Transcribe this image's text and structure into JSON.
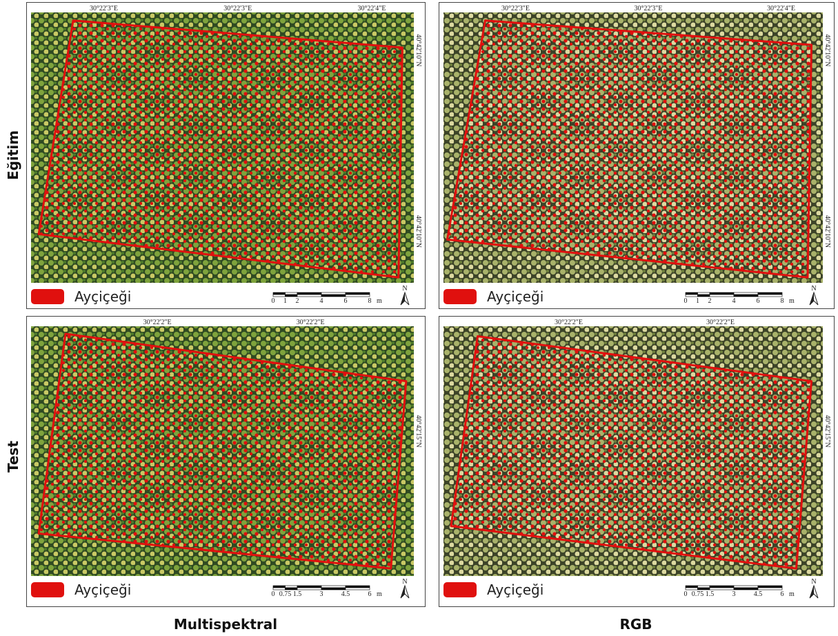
{
  "row_labels": [
    "Eğitim",
    "Test"
  ],
  "column_labels": [
    "Multispektral",
    "RGB"
  ],
  "panels": [
    {
      "top_coords": [
        "30°22'3\"E",
        "30°22'3\"E",
        "30°22'4\"E"
      ],
      "right_coords": [
        "40°42'10\"N",
        "40°42'10\"N"
      ],
      "legend": "Ayçiçeği",
      "scale_labels": [
        "0",
        "1",
        "2",
        "4",
        "6",
        "8"
      ],
      "scale_unit": "m",
      "north": "N"
    },
    {
      "top_coords": [
        "30°22'3\"E",
        "30°22'3\"E",
        "30°22'4\"E"
      ],
      "right_coords": [
        "40°42'10\"N",
        "40°42'10\"N"
      ],
      "legend": "Ayçiçeği",
      "scale_labels": [
        "0",
        "1",
        "2",
        "4",
        "6",
        "8"
      ],
      "scale_unit": "m",
      "north": "N"
    },
    {
      "top_coords": [
        "30°22'2\"E",
        "30°22'2\"E"
      ],
      "right_coords": [
        "40°42'15\"N"
      ],
      "legend": "Ayçiçeği",
      "scale_labels": [
        "0",
        "0.75",
        "1.5",
        "3",
        "4.5",
        "6"
      ],
      "scale_unit": "m",
      "north": "N"
    },
    {
      "top_coords": [
        "30°22'2\"E",
        "30°22'2\"E"
      ],
      "right_coords": [
        "40°42'15\"N"
      ],
      "legend": "Ayçiçeği",
      "scale_labels": [
        "0",
        "0.75",
        "1.5",
        "3",
        "4.5",
        "6"
      ],
      "scale_unit": "m",
      "north": "N"
    }
  ]
}
